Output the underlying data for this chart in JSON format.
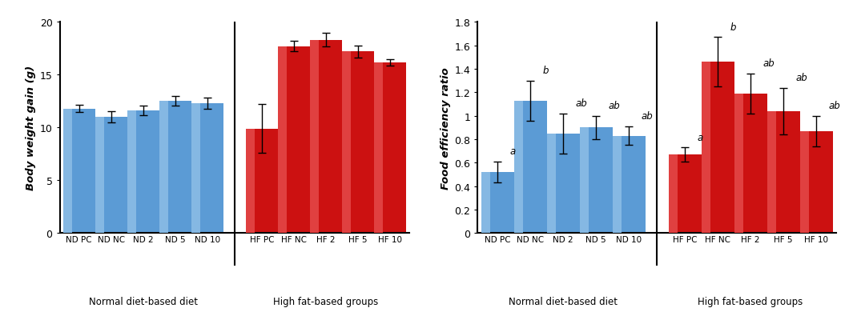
{
  "chart1": {
    "ylabel": "Body weight gain (g)",
    "ylim": [
      0,
      20
    ],
    "yticks": [
      0,
      5,
      10,
      15,
      20
    ],
    "categories": [
      "ND PC",
      "ND NC",
      "ND 2",
      "ND 5",
      "ND 10",
      "HF PC",
      "HF NC",
      "HF 2",
      "HF 5",
      "HF 10"
    ],
    "values": [
      11.8,
      11.0,
      11.6,
      12.5,
      12.3,
      9.9,
      17.7,
      18.3,
      17.2,
      16.2
    ],
    "errors": [
      0.35,
      0.55,
      0.45,
      0.45,
      0.5,
      2.3,
      0.5,
      0.65,
      0.55,
      0.3
    ],
    "colors": [
      "#5b9bd5",
      "#5b9bd5",
      "#5b9bd5",
      "#5b9bd5",
      "#5b9bd5",
      "#cc1111",
      "#cc1111",
      "#cc1111",
      "#cc1111",
      "#cc1111"
    ],
    "group_labels": [
      "Normal diet-based diet",
      "High fat-based groups"
    ]
  },
  "chart2": {
    "ylabel": "Food efficiency ratio",
    "ylim": [
      0,
      1.8
    ],
    "yticks": [
      0,
      0.2,
      0.4,
      0.6,
      0.8,
      1.0,
      1.2,
      1.4,
      1.6,
      1.8
    ],
    "categories": [
      "ND PC",
      "ND NC",
      "ND 2",
      "ND 5",
      "ND 10",
      "HF PC",
      "HF NC",
      "HF 2",
      "HF 5",
      "HF 10"
    ],
    "values": [
      0.52,
      1.13,
      0.85,
      0.9,
      0.83,
      0.67,
      1.46,
      1.19,
      1.04,
      0.87
    ],
    "errors": [
      0.09,
      0.17,
      0.17,
      0.1,
      0.08,
      0.06,
      0.21,
      0.17,
      0.2,
      0.13
    ],
    "colors": [
      "#5b9bd5",
      "#5b9bd5",
      "#5b9bd5",
      "#5b9bd5",
      "#5b9bd5",
      "#cc1111",
      "#cc1111",
      "#cc1111",
      "#cc1111",
      "#cc1111"
    ],
    "group_labels": [
      "Normal diet-based diet",
      "High fat-based groups"
    ],
    "sig_labels": [
      "a",
      "b",
      "ab",
      "ab",
      "ab",
      "a",
      "b",
      "ab",
      "ab",
      "ab"
    ]
  },
  "blue_color": "#5b9bd5",
  "red_color": "#cc1111",
  "blue_light": "#85b8e3",
  "red_light": "#e04040",
  "font_family": "Arial"
}
